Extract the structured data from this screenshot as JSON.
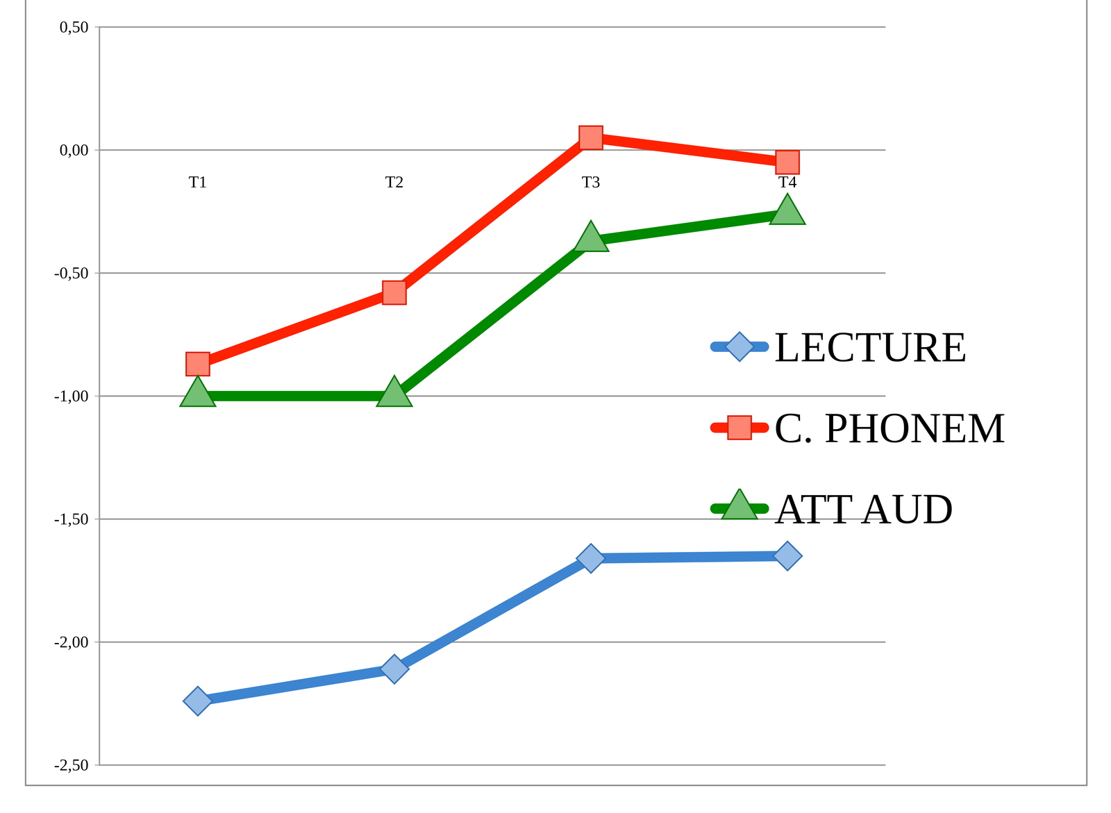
{
  "chart_data": {
    "type": "line",
    "categories": [
      "T1",
      "T2",
      "T3",
      "T4"
    ],
    "series": [
      {
        "name": "LECTURE",
        "color": "#3d85d1",
        "marker": "diamond",
        "values": [
          -2.24,
          -2.11,
          -1.66,
          -1.65
        ]
      },
      {
        "name": "C. PHONEM",
        "color": "#ff2200",
        "marker": "square",
        "values": [
          -0.87,
          -0.58,
          0.05,
          -0.05
        ]
      },
      {
        "name": "ATT AUD",
        "color": "#008a00",
        "marker": "triangle",
        "values": [
          -1.0,
          -1.0,
          -0.37,
          -0.26
        ]
      }
    ],
    "ylim": [
      -2.5,
      0.5
    ],
    "yticks": [
      {
        "value": 0.5,
        "label": "0,50"
      },
      {
        "value": 0,
        "label": "0,00"
      },
      {
        "value": -0.5,
        "label": "-0,50"
      },
      {
        "value": -1,
        "label": "-1,00"
      },
      {
        "value": -1.5,
        "label": "-1,50"
      },
      {
        "value": -2,
        "label": "-2,00"
      },
      {
        "value": -2.5,
        "label": "-2,50"
      }
    ],
    "grid": true,
    "legend": "right"
  }
}
